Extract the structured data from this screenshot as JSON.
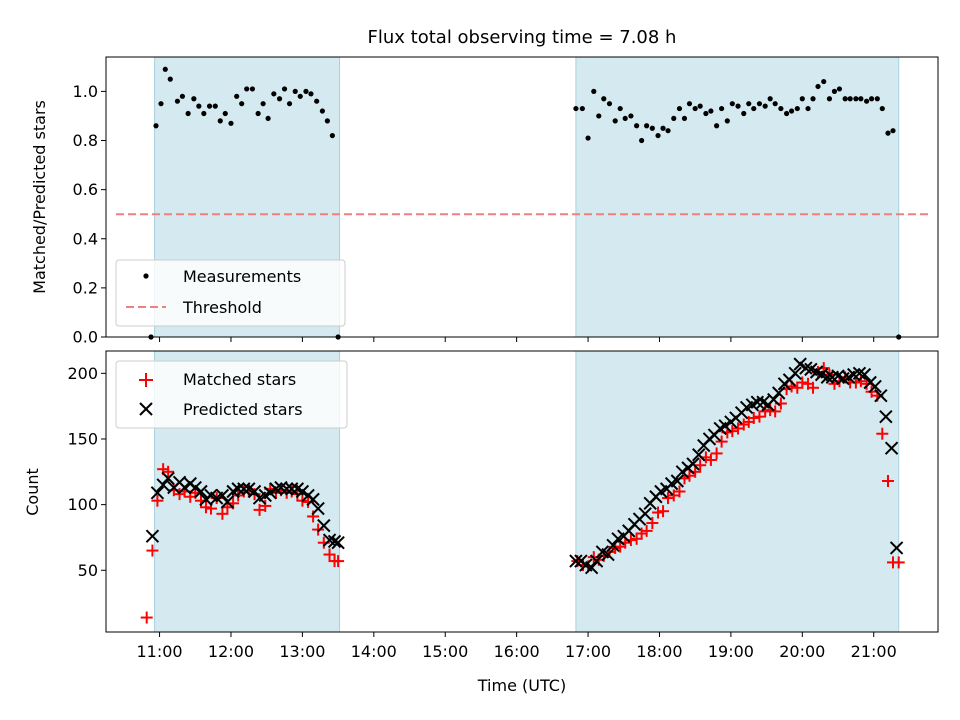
{
  "colors": {
    "band": "#d4eaf0",
    "band_edge": "#a8d2de",
    "measurement": "#000000",
    "threshold": "#f08080",
    "matched": "#ff0000",
    "predicted": "#000000"
  },
  "chart_data": [
    {
      "type": "scatter",
      "title": "Flux total observing time = 7.08 h",
      "xlabel": "",
      "ylabel": "Matched/Predicted stars",
      "xlim": [
        10.25,
        21.9
      ],
      "ylim": [
        0.0,
        1.14
      ],
      "x_unit": "hours UTC",
      "yticks": [
        "0.0",
        "0.2",
        "0.4",
        "0.6",
        "0.8",
        "1.0"
      ],
      "shaded_intervals": [
        [
          10.93,
          13.52
        ],
        [
          16.83,
          21.35
        ]
      ],
      "threshold": {
        "name": "Threshold",
        "value": 0.5
      },
      "legend": {
        "position": "lower-left",
        "entries": [
          "Measurements",
          "Threshold"
        ]
      },
      "series": [
        {
          "name": "Measurements",
          "x": [
            10.88,
            10.95,
            11.02,
            11.08,
            11.15,
            11.25,
            11.32,
            11.4,
            11.48,
            11.55,
            11.62,
            11.7,
            11.78,
            11.85,
            11.92,
            12.0,
            12.08,
            12.15,
            12.22,
            12.3,
            12.38,
            12.45,
            12.52,
            12.6,
            12.68,
            12.75,
            12.82,
            12.9,
            12.97,
            13.05,
            13.12,
            13.2,
            13.28,
            13.35,
            13.42,
            13.5,
            16.83,
            16.92,
            17.0,
            17.08,
            17.15,
            17.22,
            17.3,
            17.38,
            17.45,
            17.52,
            17.6,
            17.68,
            17.75,
            17.82,
            17.9,
            17.98,
            18.05,
            18.12,
            18.2,
            18.28,
            18.35,
            18.42,
            18.5,
            18.57,
            18.65,
            18.72,
            18.8,
            18.87,
            18.95,
            19.02,
            19.1,
            19.18,
            19.25,
            19.32,
            19.4,
            19.48,
            19.55,
            19.62,
            19.7,
            19.78,
            19.85,
            19.93,
            20.0,
            20.08,
            20.15,
            20.22,
            20.3,
            20.38,
            20.45,
            20.52,
            20.6,
            20.67,
            20.75,
            20.82,
            20.9,
            20.97,
            21.05,
            21.12,
            21.2,
            21.27,
            21.35
          ],
          "y": [
            0.0,
            0.86,
            0.95,
            1.09,
            1.05,
            0.96,
            0.98,
            0.91,
            0.97,
            0.94,
            0.91,
            0.94,
            0.94,
            0.88,
            0.91,
            0.87,
            0.98,
            0.95,
            1.01,
            1.01,
            0.91,
            0.95,
            0.89,
            0.99,
            0.97,
            1.01,
            0.95,
            1.0,
            0.98,
            1.0,
            0.99,
            0.96,
            0.92,
            0.88,
            0.82,
            0.0,
            0.93,
            0.93,
            0.81,
            1.0,
            0.9,
            0.97,
            0.95,
            0.88,
            0.93,
            0.89,
            0.9,
            0.86,
            0.8,
            0.86,
            0.85,
            0.82,
            0.85,
            0.84,
            0.89,
            0.93,
            0.89,
            0.95,
            0.93,
            0.94,
            0.91,
            0.92,
            0.86,
            0.93,
            0.88,
            0.95,
            0.94,
            0.91,
            0.95,
            0.93,
            0.95,
            0.94,
            0.97,
            0.95,
            0.93,
            0.91,
            0.92,
            0.93,
            0.97,
            0.93,
            0.97,
            1.02,
            1.04,
            0.97,
            1.0,
            1.01,
            0.97,
            0.97,
            0.97,
            0.97,
            0.96,
            0.97,
            0.97,
            0.93,
            0.83,
            0.84,
            0.0
          ]
        }
      ]
    },
    {
      "type": "scatter",
      "title": "",
      "xlabel": "Time (UTC)",
      "ylabel": "Count",
      "xlim": [
        10.25,
        21.9
      ],
      "ylim": [
        3,
        217
      ],
      "x_unit": "hours UTC",
      "xticks": [
        "11:00",
        "12:00",
        "13:00",
        "14:00",
        "15:00",
        "16:00",
        "17:00",
        "18:00",
        "19:00",
        "20:00",
        "21:00"
      ],
      "yticks": [
        "50",
        "100",
        "150",
        "200"
      ],
      "shaded_intervals": [
        [
          10.93,
          13.52
        ],
        [
          16.83,
          21.35
        ]
      ],
      "legend": {
        "position": "top-left",
        "entries": [
          "Matched stars",
          "Predicted stars"
        ]
      },
      "series": [
        {
          "name": "Matched stars",
          "marker": "plus",
          "x": [
            10.82,
            10.9,
            10.97,
            11.05,
            11.12,
            11.2,
            11.28,
            11.35,
            11.43,
            11.5,
            11.58,
            11.65,
            11.72,
            11.8,
            11.88,
            11.95,
            12.03,
            12.1,
            12.18,
            12.25,
            12.33,
            12.4,
            12.48,
            12.55,
            12.63,
            12.7,
            12.78,
            12.85,
            12.93,
            13.0,
            13.08,
            13.15,
            13.22,
            13.3,
            13.38,
            13.45,
            13.5,
            16.85,
            16.93,
            17.0,
            17.08,
            17.15,
            17.22,
            17.3,
            17.38,
            17.45,
            17.52,
            17.6,
            17.68,
            17.75,
            17.82,
            17.9,
            17.98,
            18.05,
            18.12,
            18.2,
            18.28,
            18.35,
            18.42,
            18.5,
            18.57,
            18.65,
            18.72,
            18.8,
            18.87,
            18.95,
            19.02,
            19.1,
            19.18,
            19.25,
            19.32,
            19.4,
            19.48,
            19.55,
            19.62,
            19.7,
            19.78,
            19.85,
            19.93,
            20.0,
            20.08,
            20.15,
            20.22,
            20.3,
            20.38,
            20.45,
            20.52,
            20.6,
            20.67,
            20.75,
            20.82,
            20.9,
            20.97,
            21.05,
            21.12,
            21.2,
            21.27,
            21.35
          ],
          "y": [
            14,
            65,
            103,
            127,
            125,
            111,
            108,
            110,
            106,
            109,
            103,
            98,
            97,
            105,
            93,
            98,
            101,
            107,
            110,
            110,
            108,
            96,
            99,
            112,
            109,
            111,
            109,
            110,
            108,
            103,
            102,
            91,
            81,
            71,
            62,
            57,
            57,
            57,
            54,
            53,
            60,
            58,
            61,
            64,
            67,
            68,
            71,
            73,
            74,
            78,
            80,
            86,
            94,
            95,
            105,
            107,
            110,
            120,
            122,
            125,
            130,
            136,
            134,
            139,
            148,
            155,
            156,
            158,
            161,
            163,
            166,
            167,
            171,
            172,
            171,
            177,
            188,
            190,
            189,
            193,
            192,
            189,
            201,
            204,
            199,
            192,
            194,
            197,
            193,
            193,
            194,
            192,
            186,
            183,
            154,
            118,
            56,
            56
          ]
        },
        {
          "name": "Predicted stars",
          "marker": "x",
          "x": [
            10.9,
            10.97,
            11.05,
            11.12,
            11.2,
            11.28,
            11.35,
            11.43,
            11.5,
            11.58,
            11.65,
            11.72,
            11.8,
            11.88,
            11.95,
            12.03,
            12.1,
            12.18,
            12.25,
            12.33,
            12.4,
            12.48,
            12.55,
            12.63,
            12.7,
            12.78,
            12.85,
            12.93,
            13.0,
            13.08,
            13.15,
            13.22,
            13.3,
            13.38,
            13.45,
            13.5,
            16.83,
            16.9,
            16.97,
            17.05,
            17.12,
            17.2,
            17.28,
            17.35,
            17.42,
            17.5,
            17.57,
            17.65,
            17.72,
            17.8,
            17.87,
            17.95,
            18.02,
            18.1,
            18.17,
            18.25,
            18.32,
            18.4,
            18.47,
            18.55,
            18.62,
            18.7,
            18.77,
            18.85,
            18.92,
            19.0,
            19.07,
            19.15,
            19.22,
            19.3,
            19.37,
            19.45,
            19.52,
            19.6,
            19.67,
            19.75,
            19.82,
            19.9,
            19.97,
            20.05,
            20.12,
            20.2,
            20.27,
            20.35,
            20.42,
            20.5,
            20.57,
            20.65,
            20.72,
            20.8,
            20.87,
            20.95,
            21.02,
            21.1,
            21.17,
            21.25,
            21.32
          ],
          "y": [
            76,
            109,
            115,
            120,
            113,
            117,
            113,
            116,
            113,
            110,
            104,
            107,
            105,
            107,
            102,
            110,
            112,
            112,
            112,
            110,
            105,
            107,
            109,
            112,
            113,
            112,
            112,
            112,
            110,
            107,
            104,
            97,
            84,
            73,
            72,
            71,
            57,
            57,
            54,
            52,
            57,
            64,
            62,
            69,
            74,
            76,
            80,
            85,
            89,
            93,
            101,
            106,
            110,
            112,
            116,
            118,
            125,
            128,
            131,
            138,
            145,
            150,
            153,
            158,
            160,
            163,
            166,
            170,
            174,
            176,
            178,
            178,
            176,
            180,
            185,
            192,
            195,
            200,
            207,
            204,
            203,
            201,
            199,
            197,
            197,
            198,
            196,
            197,
            199,
            200,
            199,
            193,
            190,
            183,
            167,
            143,
            67
          ]
        }
      ]
    }
  ]
}
